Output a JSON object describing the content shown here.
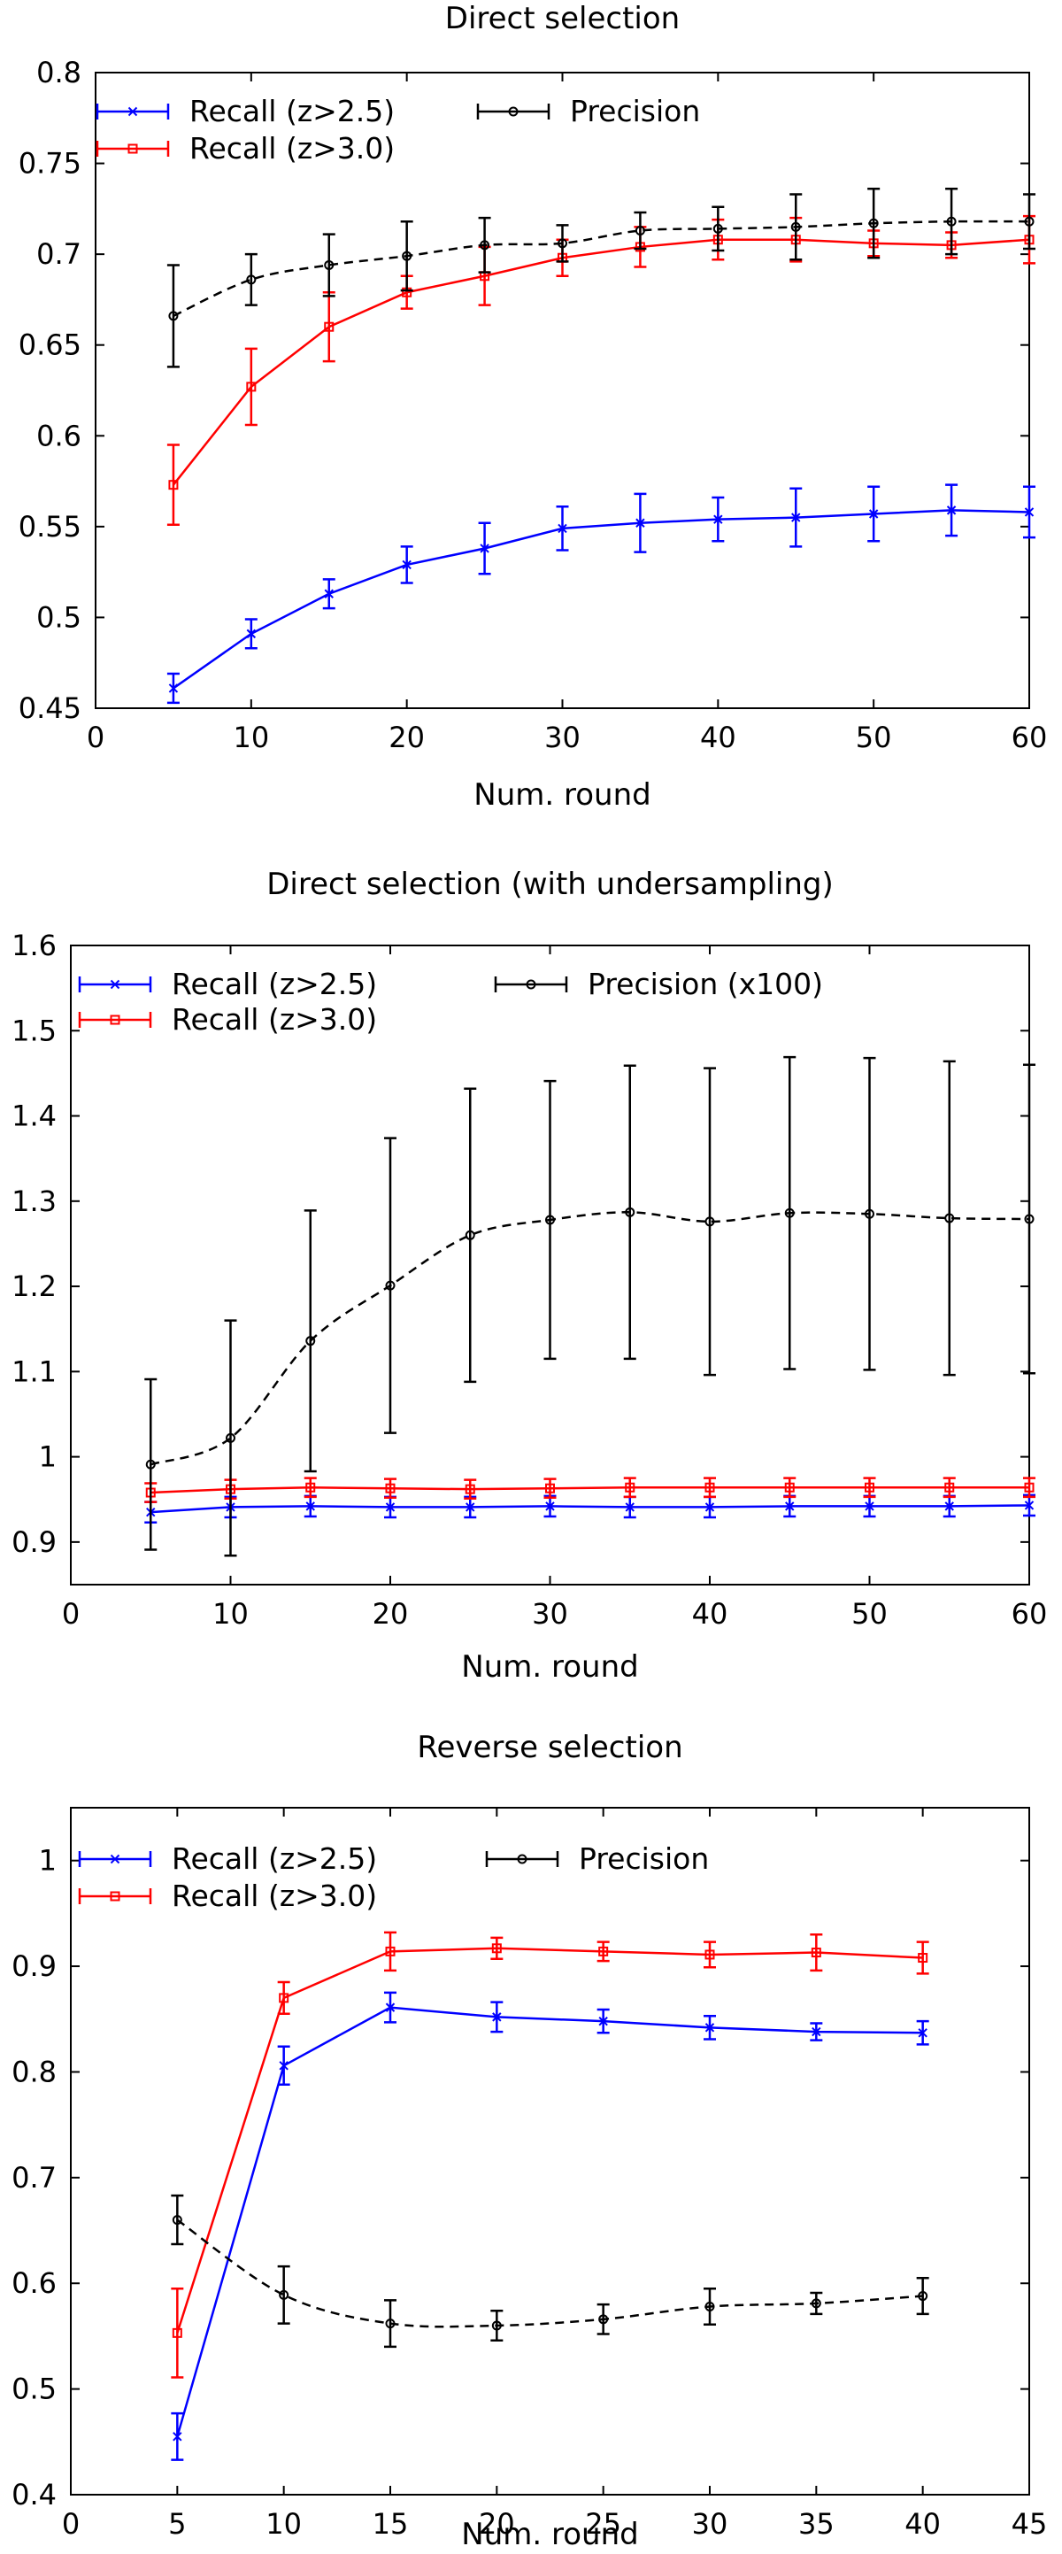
{
  "chart_data": [
    {
      "type": "line",
      "title": "Direct selection",
      "xlabel": "Num. round",
      "ylabel": "",
      "xlim": [
        0,
        60
      ],
      "ylim": [
        0.45,
        0.8
      ],
      "xticks": [
        0,
        10,
        20,
        30,
        40,
        50,
        60
      ],
      "yticks": [
        0.45,
        0.5,
        0.55,
        0.6,
        0.65,
        0.7,
        0.75,
        0.8
      ],
      "ytick_labels": [
        "0.45",
        "0.5",
        "0.55",
        "0.6",
        "0.65",
        "0.7",
        "0.75",
        "0.8"
      ],
      "x": [
        5,
        10,
        15,
        20,
        25,
        30,
        35,
        40,
        45,
        50,
        55,
        60
      ],
      "series": [
        {
          "name": "Recall (z>2.5)",
          "color": "#0000ff",
          "marker": "x",
          "dash": false,
          "values": [
            0.461,
            0.491,
            0.513,
            0.529,
            0.538,
            0.549,
            0.552,
            0.554,
            0.555,
            0.557,
            0.559,
            0.558
          ],
          "errors": [
            0.008,
            0.008,
            0.008,
            0.01,
            0.014,
            0.012,
            0.016,
            0.012,
            0.016,
            0.015,
            0.014,
            0.014
          ]
        },
        {
          "name": "Recall (z>3.0)",
          "color": "#ff0000",
          "marker": "square",
          "dash": false,
          "values": [
            0.573,
            0.627,
            0.66,
            0.679,
            0.688,
            0.698,
            0.704,
            0.708,
            0.708,
            0.706,
            0.705,
            0.708
          ],
          "errors": [
            0.022,
            0.021,
            0.019,
            0.009,
            0.016,
            0.01,
            0.011,
            0.011,
            0.012,
            0.007,
            0.007,
            0.013
          ]
        },
        {
          "name": "Precision",
          "color": "#000000",
          "marker": "circle",
          "dash": true,
          "values": [
            0.666,
            0.686,
            0.694,
            0.699,
            0.705,
            0.706,
            0.713,
            0.714,
            0.715,
            0.717,
            0.718,
            0.718
          ],
          "errors": [
            0.028,
            0.014,
            0.017,
            0.019,
            0.015,
            0.01,
            0.01,
            0.012,
            0.018,
            0.019,
            0.018,
            0.015
          ]
        }
      ]
    },
    {
      "type": "line",
      "title": "Direct selection (with undersampling)",
      "xlabel": "Num. round",
      "ylabel": "",
      "xlim": [
        0,
        60
      ],
      "ylim": [
        0.85,
        1.6
      ],
      "xticks": [
        0,
        10,
        20,
        30,
        40,
        50,
        60
      ],
      "yticks": [
        0.9,
        1.0,
        1.1,
        1.2,
        1.3,
        1.4,
        1.5,
        1.6
      ],
      "ytick_labels": [
        "0.9",
        "1",
        "1.1",
        "1.2",
        "1.3",
        "1.4",
        "1.5",
        "1.6"
      ],
      "x": [
        5,
        10,
        15,
        20,
        25,
        30,
        35,
        40,
        45,
        50,
        55,
        60
      ],
      "series": [
        {
          "name": "Recall (z>2.5)",
          "color": "#0000ff",
          "marker": "x",
          "dash": false,
          "values": [
            0.935,
            0.941,
            0.942,
            0.941,
            0.941,
            0.942,
            0.941,
            0.941,
            0.942,
            0.942,
            0.942,
            0.943
          ],
          "errors": [
            0.012,
            0.012,
            0.012,
            0.012,
            0.012,
            0.012,
            0.012,
            0.012,
            0.012,
            0.012,
            0.012,
            0.012
          ]
        },
        {
          "name": "Recall (z>3.0)",
          "color": "#ff0000",
          "marker": "square",
          "dash": false,
          "values": [
            0.958,
            0.962,
            0.964,
            0.963,
            0.962,
            0.963,
            0.964,
            0.964,
            0.964,
            0.964,
            0.964,
            0.964
          ],
          "errors": [
            0.011,
            0.011,
            0.011,
            0.011,
            0.011,
            0.011,
            0.011,
            0.011,
            0.011,
            0.011,
            0.011,
            0.011
          ]
        },
        {
          "name": "Precision (x100)",
          "color": "#000000",
          "marker": "circle",
          "dash": true,
          "values": [
            0.991,
            1.022,
            1.136,
            1.201,
            1.26,
            1.278,
            1.287,
            1.276,
            1.286,
            1.285,
            1.28,
            1.279
          ],
          "errors": [
            0.1,
            0.138,
            0.153,
            0.173,
            0.172,
            0.163,
            0.172,
            0.18,
            0.183,
            0.183,
            0.184,
            0.181
          ]
        }
      ]
    },
    {
      "type": "line",
      "title": "Reverse selection",
      "xlabel": "Num. round",
      "ylabel": "",
      "xlim": [
        0,
        45
      ],
      "ylim": [
        0.4,
        1.05
      ],
      "xticks": [
        0,
        5,
        10,
        15,
        20,
        25,
        30,
        35,
        40,
        45
      ],
      "yticks": [
        0.4,
        0.5,
        0.6,
        0.7,
        0.8,
        0.9,
        1.0
      ],
      "ytick_labels": [
        "0.4",
        "0.5",
        "0.6",
        "0.7",
        "0.8",
        "0.9",
        "1"
      ],
      "x": [
        5,
        10,
        15,
        20,
        25,
        30,
        35,
        40
      ],
      "series": [
        {
          "name": "Recall (z>2.5)",
          "color": "#0000ff",
          "marker": "x",
          "dash": false,
          "values": [
            0.455,
            0.806,
            0.861,
            0.852,
            0.848,
            0.842,
            0.838,
            0.837
          ],
          "errors": [
            0.022,
            0.018,
            0.014,
            0.014,
            0.011,
            0.011,
            0.008,
            0.011
          ]
        },
        {
          "name": "Recall (z>3.0)",
          "color": "#ff0000",
          "marker": "square",
          "dash": false,
          "values": [
            0.553,
            0.87,
            0.914,
            0.917,
            0.914,
            0.911,
            0.913,
            0.908
          ],
          "errors": [
            0.042,
            0.015,
            0.018,
            0.01,
            0.009,
            0.012,
            0.017,
            0.015
          ]
        },
        {
          "name": "Precision",
          "color": "#000000",
          "marker": "circle",
          "dash": true,
          "values": [
            0.66,
            0.589,
            0.562,
            0.56,
            0.566,
            0.578,
            0.581,
            0.588
          ],
          "errors": [
            0.023,
            0.027,
            0.022,
            0.014,
            0.014,
            0.017,
            0.01,
            0.017
          ]
        }
      ]
    }
  ]
}
